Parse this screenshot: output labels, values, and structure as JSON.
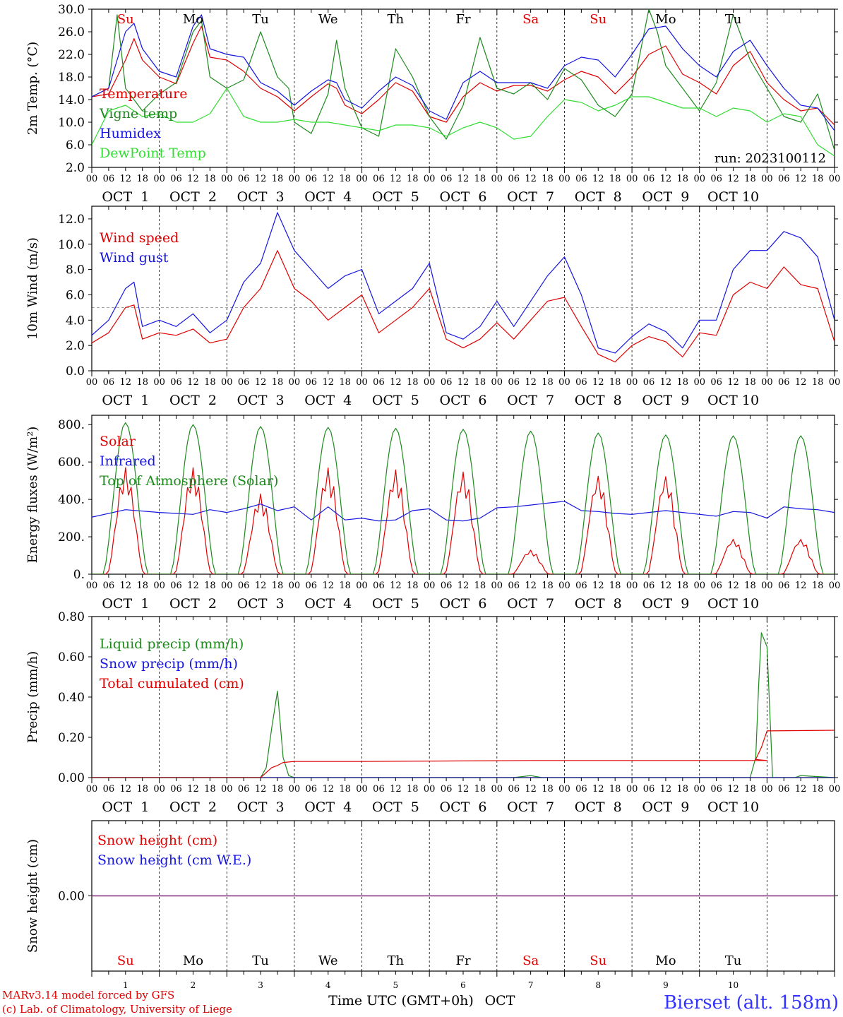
{
  "colors": {
    "red": "#e00000",
    "blue": "#1515e0",
    "dark_green": "#1e8a1e",
    "light_green": "#33dd33",
    "purple": "#7a207a",
    "station": "#3333ff"
  },
  "x_axis": {
    "hour_ticks": [
      "00",
      "06",
      "12",
      "18"
    ],
    "end_tick": "00",
    "date_labels": [
      "OCT  1",
      "OCT  2",
      "OCT  3",
      "OCT  4",
      "OCT  5",
      "OCT  6",
      "OCT  7",
      "OCT  8",
      "OCT  9",
      "OCT 10"
    ],
    "weekdays": [
      "Su",
      "Mo",
      "Tu",
      "We",
      "Th",
      "Fr",
      "Sa",
      "Su",
      "Mo",
      "Tu"
    ],
    "weekday_colors": [
      "red",
      "black",
      "black",
      "black",
      "black",
      "black",
      "red",
      "red",
      "black",
      "black"
    ],
    "day_numbers": [
      "1",
      "2",
      "3",
      "4",
      "5",
      "6",
      "7",
      "8",
      "9",
      "10"
    ],
    "title": "Time UTC (GMT+0h)",
    "month": "OCT"
  },
  "footer": {
    "line1": "MARv3.14 model forced by GFS",
    "line2": "(c) Lab. of Climatology, University of Liege",
    "station": "Bierset (alt. 158m)"
  },
  "chart_data": [
    {
      "type": "line",
      "ylabel": "2m Temp. (°C)",
      "ylim": [
        2.0,
        30.0
      ],
      "yticks": [
        "2.0",
        "6.0",
        "10.0",
        "14.0",
        "18.0",
        "22.0",
        "26.0",
        "30.0"
      ],
      "annotation": "run: 2023100112",
      "series": [
        {
          "name": "Temperature",
          "color": "red",
          "x_hours": [
            0,
            6,
            12,
            15,
            18,
            24,
            30,
            36,
            39,
            42,
            48,
            54,
            60,
            66,
            72,
            78,
            84,
            87,
            90,
            96,
            102,
            108,
            114,
            120,
            126,
            132,
            138,
            144,
            150,
            156,
            162,
            168,
            174,
            180,
            186,
            192,
            198,
            204,
            210,
            216,
            222,
            228,
            234,
            240,
            246,
            252,
            258,
            264
          ],
          "y": [
            14.5,
            15,
            21,
            24.8,
            21,
            18,
            16.8,
            24,
            27,
            21.5,
            21,
            19,
            16,
            14.5,
            12,
            14.5,
            16.8,
            16,
            13,
            11.5,
            14,
            17,
            15.5,
            11,
            10,
            14.5,
            17,
            15.5,
            16.5,
            16.5,
            15.5,
            17.5,
            19,
            18,
            15,
            18,
            22,
            23.5,
            18.5,
            17,
            15,
            20,
            22.5,
            17,
            14,
            12,
            12.5,
            9.5
          ]
        },
        {
          "name": "Vigne temp",
          "color": "dark_green",
          "x_hours": [
            0,
            6,
            9,
            12,
            18,
            24,
            30,
            36,
            39,
            42,
            48,
            54,
            60,
            66,
            70,
            72,
            78,
            84,
            87,
            90,
            96,
            102,
            108,
            114,
            120,
            126,
            132,
            138,
            144,
            150,
            156,
            162,
            168,
            174,
            180,
            186,
            192,
            198,
            201,
            204,
            210,
            216,
            222,
            228,
            234,
            240,
            246,
            252,
            258,
            264
          ],
          "y": [
            14.5,
            16,
            29,
            16,
            12,
            15,
            17,
            26,
            28,
            18,
            16,
            17.5,
            26,
            18,
            16,
            10,
            8,
            15,
            24.5,
            16,
            9,
            7.5,
            23,
            18,
            11,
            7,
            13,
            25,
            16,
            15,
            17,
            14,
            19.5,
            17.5,
            13,
            11,
            15,
            30,
            26,
            20,
            16,
            12,
            17,
            29,
            21,
            16,
            11,
            10,
            15,
            5
          ]
        },
        {
          "name": "Humidex",
          "color": "blue",
          "x_hours": [
            0,
            6,
            12,
            15,
            18,
            24,
            30,
            36,
            39,
            42,
            48,
            54,
            60,
            66,
            72,
            78,
            84,
            87,
            90,
            96,
            102,
            108,
            114,
            120,
            126,
            132,
            138,
            144,
            150,
            156,
            162,
            168,
            174,
            180,
            186,
            192,
            198,
            204,
            210,
            216,
            222,
            228,
            234,
            240,
            246,
            252,
            258,
            264
          ],
          "y": [
            14.5,
            16,
            26,
            27.5,
            23,
            19,
            18,
            27,
            29,
            23,
            22,
            21.5,
            17,
            15.5,
            13,
            15.5,
            17.5,
            17,
            14,
            12.5,
            15.5,
            18,
            16.5,
            12,
            10.5,
            17,
            19,
            17,
            17,
            17,
            16,
            20,
            21.5,
            21,
            18,
            22,
            26.5,
            27,
            23,
            20,
            18,
            22.5,
            24.5,
            20,
            16,
            13,
            12.5,
            8.5
          ]
        },
        {
          "name": "DewPoint Temp",
          "color": "light_green",
          "x_hours": [
            0,
            6,
            12,
            18,
            24,
            30,
            36,
            42,
            48,
            54,
            60,
            66,
            72,
            78,
            84,
            90,
            96,
            102,
            108,
            114,
            120,
            126,
            132,
            138,
            144,
            150,
            156,
            162,
            168,
            174,
            180,
            186,
            192,
            198,
            204,
            210,
            216,
            222,
            228,
            234,
            240,
            246,
            252,
            258,
            264
          ],
          "y": [
            6,
            12,
            13,
            11,
            11.5,
            10,
            10,
            11.5,
            16,
            11,
            10,
            10,
            10.5,
            10,
            10,
            9.5,
            9,
            8.5,
            9.5,
            9.5,
            9,
            7.5,
            9,
            10,
            9,
            7,
            7.5,
            11,
            14,
            13.5,
            12,
            13,
            14.5,
            14.5,
            13.5,
            12.5,
            12.5,
            11,
            12.5,
            12,
            10,
            11.5,
            11,
            6,
            4
          ]
        }
      ]
    },
    {
      "type": "line",
      "ylabel": "10m Wind (m/s)",
      "ylim": [
        0.0,
        13.0
      ],
      "yticks": [
        "0.0",
        "2.0",
        "4.0",
        "6.0",
        "8.0",
        "10.0",
        "12.0"
      ],
      "reference_line": 5.0,
      "series": [
        {
          "name": "Wind speed",
          "color": "red",
          "x_hours": [
            0,
            6,
            12,
            15,
            18,
            24,
            30,
            36,
            42,
            48,
            54,
            60,
            66,
            72,
            78,
            84,
            90,
            96,
            102,
            108,
            114,
            120,
            126,
            132,
            138,
            144,
            150,
            156,
            162,
            168,
            174,
            180,
            186,
            192,
            198,
            204,
            210,
            216,
            222,
            228,
            234,
            240,
            246,
            252,
            258,
            264
          ],
          "y": [
            2.2,
            3,
            5,
            5.2,
            2.5,
            3,
            2.8,
            3.3,
            2.2,
            2.5,
            5,
            6.5,
            9.5,
            6.5,
            5.5,
            4,
            5,
            6,
            3,
            4,
            5,
            6.5,
            2.5,
            1.8,
            2.5,
            3.8,
            2.5,
            4,
            5.5,
            5.8,
            3.5,
            1.3,
            0.7,
            2,
            2.7,
            2.3,
            1.1,
            3,
            2.8,
            6,
            7,
            6.5,
            8.2,
            6.8,
            6.5,
            2.3
          ]
        },
        {
          "name": "Wind gust",
          "color": "blue",
          "x_hours": [
            0,
            6,
            12,
            15,
            18,
            24,
            30,
            36,
            42,
            48,
            54,
            60,
            66,
            72,
            78,
            84,
            90,
            96,
            102,
            108,
            114,
            120,
            126,
            132,
            138,
            144,
            150,
            156,
            162,
            168,
            174,
            180,
            186,
            192,
            198,
            204,
            210,
            216,
            222,
            228,
            234,
            240,
            246,
            252,
            258,
            264
          ],
          "y": [
            2.8,
            4,
            6.5,
            7,
            3.5,
            4,
            3.5,
            4.5,
            3,
            4,
            7,
            8.5,
            12.5,
            9.5,
            8,
            6.5,
            7.5,
            8,
            4.5,
            5.5,
            6.5,
            8.5,
            3,
            2.5,
            3.5,
            5.5,
            3.5,
            5.5,
            7.5,
            9,
            6,
            1.8,
            1.4,
            2.7,
            3.7,
            3.1,
            1.8,
            4,
            4,
            8,
            9.5,
            9.5,
            11,
            10.5,
            9,
            4
          ]
        }
      ]
    },
    {
      "type": "line",
      "ylabel": "Energy fluxes (W/m²)",
      "ylim": [
        0,
        850
      ],
      "yticks": [
        "0.",
        "200.",
        "400.",
        "600.",
        "800."
      ],
      "series": [
        {
          "name": "Solar",
          "color": "red",
          "peaks": [
            570,
            570,
            430,
            570,
            560,
            550,
            130,
            530,
            530,
            190
          ]
        },
        {
          "name": "Infrared",
          "color": "blue",
          "x_hours": [
            0,
            12,
            24,
            36,
            42,
            48,
            54,
            60,
            66,
            72,
            78,
            84,
            90,
            96,
            102,
            108,
            114,
            120,
            126,
            132,
            138,
            144,
            150,
            156,
            162,
            168,
            174,
            180,
            186,
            192,
            198,
            204,
            210,
            216,
            222,
            228,
            234,
            240,
            246,
            252,
            258,
            264
          ],
          "y": [
            305,
            345,
            330,
            320,
            345,
            330,
            350,
            375,
            340,
            360,
            290,
            360,
            290,
            300,
            285,
            290,
            340,
            350,
            290,
            285,
            300,
            355,
            360,
            370,
            380,
            390,
            340,
            335,
            325,
            320,
            330,
            340,
            330,
            320,
            310,
            335,
            330,
            300,
            360,
            350,
            345,
            330
          ]
        },
        {
          "name": "Top of Atmosphere (Solar)",
          "color": "dark_green",
          "peaks": [
            810,
            800,
            790,
            785,
            780,
            775,
            765,
            755,
            745,
            740
          ]
        }
      ]
    },
    {
      "type": "line",
      "ylabel": "Precip (mm/h)",
      "ylim": [
        0.0,
        0.8
      ],
      "yticks": [
        "0.00",
        "0.20",
        "0.40",
        "0.60",
        "0.80"
      ],
      "series": [
        {
          "name": "Liquid precip (mm/h)",
          "color": "dark_green",
          "x_hours": [
            0,
            60,
            62,
            64,
            66,
            68,
            70,
            72,
            150,
            156,
            160,
            234,
            236,
            237,
            238,
            240,
            242,
            250,
            252,
            264
          ],
          "y": [
            0,
            0,
            0.05,
            0.25,
            0.43,
            0.1,
            0.01,
            0,
            0,
            0.01,
            0,
            0,
            0.1,
            0.45,
            0.72,
            0.65,
            0,
            0,
            0.01,
            0
          ]
        },
        {
          "name": "Snow precip (mm/h)",
          "color": "blue",
          "x_hours": [
            0,
            264
          ],
          "y": [
            0,
            0
          ]
        },
        {
          "name": "Total cumulated (cm)",
          "color": "red",
          "x_hours": [
            0,
            60,
            64,
            66,
            68,
            72,
            96,
            156,
            240,
            236,
            238,
            240,
            264
          ],
          "y": [
            0,
            0,
            0.05,
            0.06,
            0.075,
            0.08,
            0.08,
            0.085,
            0.085,
            0.09,
            0.15,
            0.232,
            0.235
          ]
        }
      ]
    },
    {
      "type": "line",
      "ylabel": "Snow height (cm)",
      "ylim": [
        -0.01,
        0.01
      ],
      "yticks": [
        "0.00"
      ],
      "series": [
        {
          "name": "Snow height (cm)",
          "color": "red",
          "x_hours": [
            0,
            264
          ],
          "y": [
            0,
            0
          ]
        },
        {
          "name": "Snow height (cm W.E.)",
          "color": "blue",
          "x_hours": [
            0,
            264
          ],
          "y": [
            0,
            0
          ]
        }
      ]
    }
  ]
}
